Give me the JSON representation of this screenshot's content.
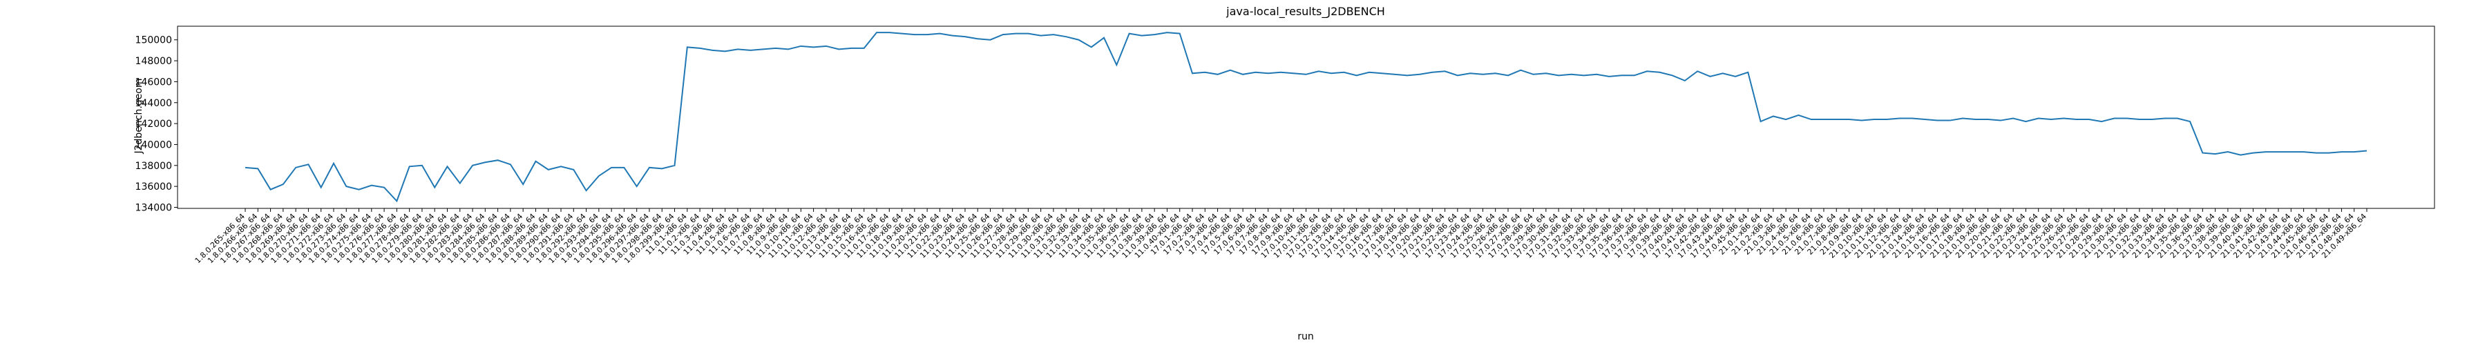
{
  "chart_data": {
    "type": "line",
    "title": "java-local_results_J2DBENCH",
    "x_label": "run",
    "y_label": "J2dbench.geom",
    "color": "#1f77b4",
    "ylim": [
      133900,
      151300
    ],
    "yticks": [
      134000,
      136000,
      138000,
      140000,
      142000,
      144000,
      146000,
      148000,
      150000
    ],
    "categories": [
      "1.8.0.265-x86_64",
      "1.8.0.266-x86_64",
      "1.8.0.267-x86_64",
      "1.8.0.268-x86_64",
      "1.8.0.269-x86_64",
      "1.8.0.270-x86_64",
      "1.8.0.271-x86_64",
      "1.8.0.272-x86_64",
      "1.8.0.273-x86_64",
      "1.8.0.274-x86_64",
      "1.8.0.275-x86_64",
      "1.8.0.276-x86_64",
      "1.8.0.277-x86_64",
      "1.8.0.278-x86_64",
      "1.8.0.279-x86_64",
      "1.8.0.280-x86_64",
      "1.8.0.281-x86_64",
      "1.8.0.282-x86_64",
      "1.8.0.283-x86_64",
      "1.8.0.284-x86_64",
      "1.8.0.285-x86_64",
      "1.8.0.286-x86_64",
      "1.8.0.287-x86_64",
      "1.8.0.288-x86_64",
      "1.8.0.289-x86_64",
      "1.8.0.290-x86_64",
      "1.8.0.291-x86_64",
      "1.8.0.292-x86_64",
      "1.8.0.293-x86_64",
      "1.8.0.294-x86_64",
      "1.8.0.295-x86_64",
      "1.8.0.296-x86_64",
      "1.8.0.297-x86_64",
      "1.8.0.298-x86_64",
      "1.8.0.299-x86_64",
      "11.0.1-x86_64",
      "11.0.2-x86_64",
      "11.0.3-x86_64",
      "11.0.4-x86_64",
      "11.0.5-x86_64",
      "11.0.6-x86_64",
      "11.0.7-x86_64",
      "11.0.8-x86_64",
      "11.0.9-x86_64",
      "11.0.10-x86_64",
      "11.0.11-x86_64",
      "11.0.12-x86_64",
      "11.0.13-x86_64",
      "11.0.14-x86_64",
      "11.0.15-x86_64",
      "11.0.16-x86_64",
      "11.0.17-x86_64",
      "11.0.18-x86_64",
      "11.0.19-x86_64",
      "11.0.20-x86_64",
      "11.0.21-x86_64",
      "11.0.22-x86_64",
      "11.0.23-x86_64",
      "11.0.24-x86_64",
      "11.0.25-x86_64",
      "11.0.26-x86_64",
      "11.0.27-x86_64",
      "11.0.28-x86_64",
      "11.0.29-x86_64",
      "11.0.30-x86_64",
      "11.0.31-x86_64",
      "11.0.32-x86_64",
      "11.0.33-x86_64",
      "11.0.34-x86_64",
      "11.0.35-x86_64",
      "11.0.36-x86_64",
      "11.0.37-x86_64",
      "11.0.38-x86_64",
      "11.0.39-x86_64",
      "11.0.40-x86_64",
      "17.0.1-x86_64",
      "17.0.2-x86_64",
      "17.0.3-x86_64",
      "17.0.4-x86_64",
      "17.0.5-x86_64",
      "17.0.6-x86_64",
      "17.0.7-x86_64",
      "17.0.8-x86_64",
      "17.0.9-x86_64",
      "17.0.10-x86_64",
      "17.0.11-x86_64",
      "17.0.12-x86_64",
      "17.0.13-x86_64",
      "17.0.14-x86_64",
      "17.0.15-x86_64",
      "17.0.16-x86_64",
      "17.0.17-x86_64",
      "17.0.18-x86_64",
      "17.0.19-x86_64",
      "17.0.20-x86_64",
      "17.0.21-x86_64",
      "17.0.22-x86_64",
      "17.0.23-x86_64",
      "17.0.24-x86_64",
      "17.0.25-x86_64",
      "17.0.26-x86_64",
      "17.0.27-x86_64",
      "17.0.28-x86_64",
      "17.0.29-x86_64",
      "17.0.30-x86_64",
      "17.0.31-x86_64",
      "17.0.32-x86_64",
      "17.0.33-x86_64",
      "17.0.34-x86_64",
      "17.0.35-x86_64",
      "17.0.36-x86_64",
      "17.0.37-x86_64",
      "17.0.38-x86_64",
      "17.0.39-x86_64",
      "17.0.40-x86_64",
      "17.0.41-x86_64",
      "17.0.42-x86_64",
      "17.0.43-x86_64",
      "17.0.44-x86_64",
      "17.0.45-x86_64",
      "21.0.1-x86_64",
      "21.0.2-x86_64",
      "21.0.3-x86_64",
      "21.0.4-x86_64",
      "21.0.5-x86_64",
      "21.0.6-x86_64",
      "21.0.7-x86_64",
      "21.0.8-x86_64",
      "21.0.9-x86_64",
      "21.0.10-x86_64",
      "21.0.11-x86_64",
      "21.0.12-x86_64",
      "21.0.13-x86_64",
      "21.0.14-x86_64",
      "21.0.15-x86_64",
      "21.0.16-x86_64",
      "21.0.17-x86_64",
      "21.0.18-x86_64",
      "21.0.19-x86_64",
      "21.0.20-x86_64",
      "21.0.21-x86_64",
      "21.0.22-x86_64",
      "21.0.23-x86_64",
      "21.0.24-x86_64",
      "21.0.25-x86_64",
      "21.0.26-x86_64",
      "21.0.27-x86_64",
      "21.0.28-x86_64",
      "21.0.29-x86_64",
      "21.0.30-x86_64",
      "21.0.31-x86_64",
      "21.0.32-x86_64",
      "21.0.33-x86_64",
      "21.0.34-x86_64",
      "21.0.35-x86_64",
      "21.0.36-x86_64",
      "21.0.37-x86_64",
      "21.0.38-x86_64",
      "21.0.39-x86_64",
      "21.0.40-x86_64",
      "21.0.41-x86_64",
      "21.0.42-x86_64",
      "21.0.43-x86_64",
      "21.0.44-x86_64",
      "21.0.45-x86_64",
      "21.0.46-x86_64",
      "21.0.47-x86_64",
      "21.0.48-x86_64",
      "21.0.49-x86_64"
    ],
    "values": [
      137800,
      137700,
      135700,
      136200,
      137800,
      138100,
      135900,
      138200,
      136000,
      135700,
      136100,
      135900,
      134600,
      137900,
      138000,
      135900,
      137900,
      136300,
      138000,
      138300,
      138500,
      138100,
      136200,
      138400,
      137600,
      137900,
      137600,
      135600,
      137000,
      137800,
      137800,
      136000,
      137800,
      137700,
      138000,
      149300,
      149200,
      149000,
      148900,
      149100,
      149000,
      149100,
      149200,
      149100,
      149400,
      149300,
      149400,
      149100,
      149200,
      149200,
      150700,
      150700,
      150600,
      150500,
      150500,
      150600,
      150400,
      150300,
      150100,
      150000,
      150500,
      150600,
      150600,
      150400,
      150500,
      150300,
      150000,
      149300,
      150200,
      147600,
      150600,
      150400,
      150500,
      150700,
      150600,
      146800,
      146900,
      146700,
      147100,
      146700,
      146900,
      146800,
      146900,
      146800,
      146700,
      147000,
      146800,
      146900,
      146600,
      146900,
      146800,
      146700,
      146600,
      146700,
      146900,
      147000,
      146600,
      146800,
      146700,
      146800,
      146600,
      147100,
      146700,
      146800,
      146600,
      146700,
      146600,
      146700,
      146500,
      146600,
      146600,
      147000,
      146900,
      146600,
      146100,
      147000,
      146500,
      146800,
      146500,
      146900,
      142200,
      142700,
      142400,
      142800,
      142400,
      142400,
      142400,
      142400,
      142300,
      142400,
      142400,
      142500,
      142500,
      142400,
      142300,
      142300,
      142500,
      142400,
      142400,
      142300,
      142500,
      142200,
      142500,
      142400,
      142500,
      142400,
      142400,
      142200,
      142500,
      142500,
      142400,
      142400,
      142500,
      142500,
      142200,
      139200,
      139100,
      139300,
      139000,
      139200,
      139300,
      139300,
      139300,
      139300,
      139200,
      139200,
      139300,
      139300,
      139400
    ]
  }
}
